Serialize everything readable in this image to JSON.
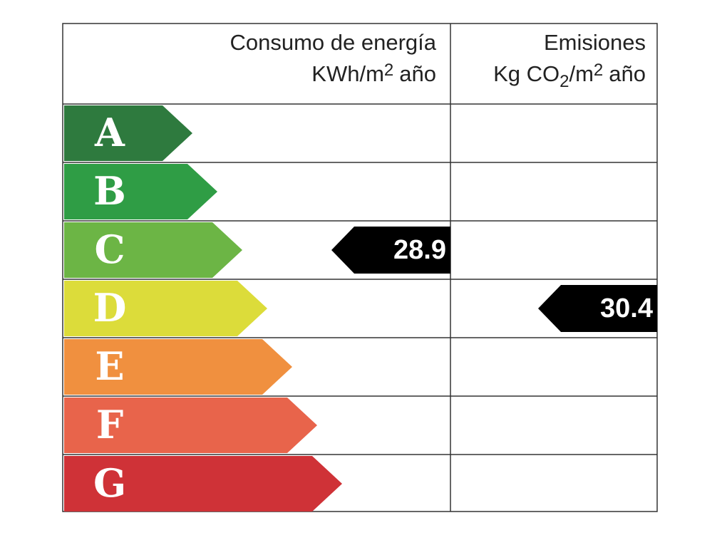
{
  "energy_header": {
    "title": "Consumo de energía",
    "unit": [
      "KWh/m",
      "2",
      "año"
    ]
  },
  "emissions_header": {
    "title": "Emisiones",
    "unit": [
      "Kg CO",
      "2",
      "/m",
      "2",
      "año"
    ]
  },
  "classes": [
    {
      "letter": "A",
      "color": "#2e7a3e"
    },
    {
      "letter": "B",
      "color": "#2f9d45"
    },
    {
      "letter": "C",
      "color": "#6cb545"
    },
    {
      "letter": "D",
      "color": "#dcdc3a"
    },
    {
      "letter": "E",
      "color": "#f0903f"
    },
    {
      "letter": "F",
      "color": "#e8644b"
    },
    {
      "letter": "G",
      "color": "#cf3237"
    }
  ],
  "energy_rating": {
    "value": 28.9,
    "class": "C"
  },
  "emissions_rating": {
    "value": 30.4,
    "class": "D"
  }
}
